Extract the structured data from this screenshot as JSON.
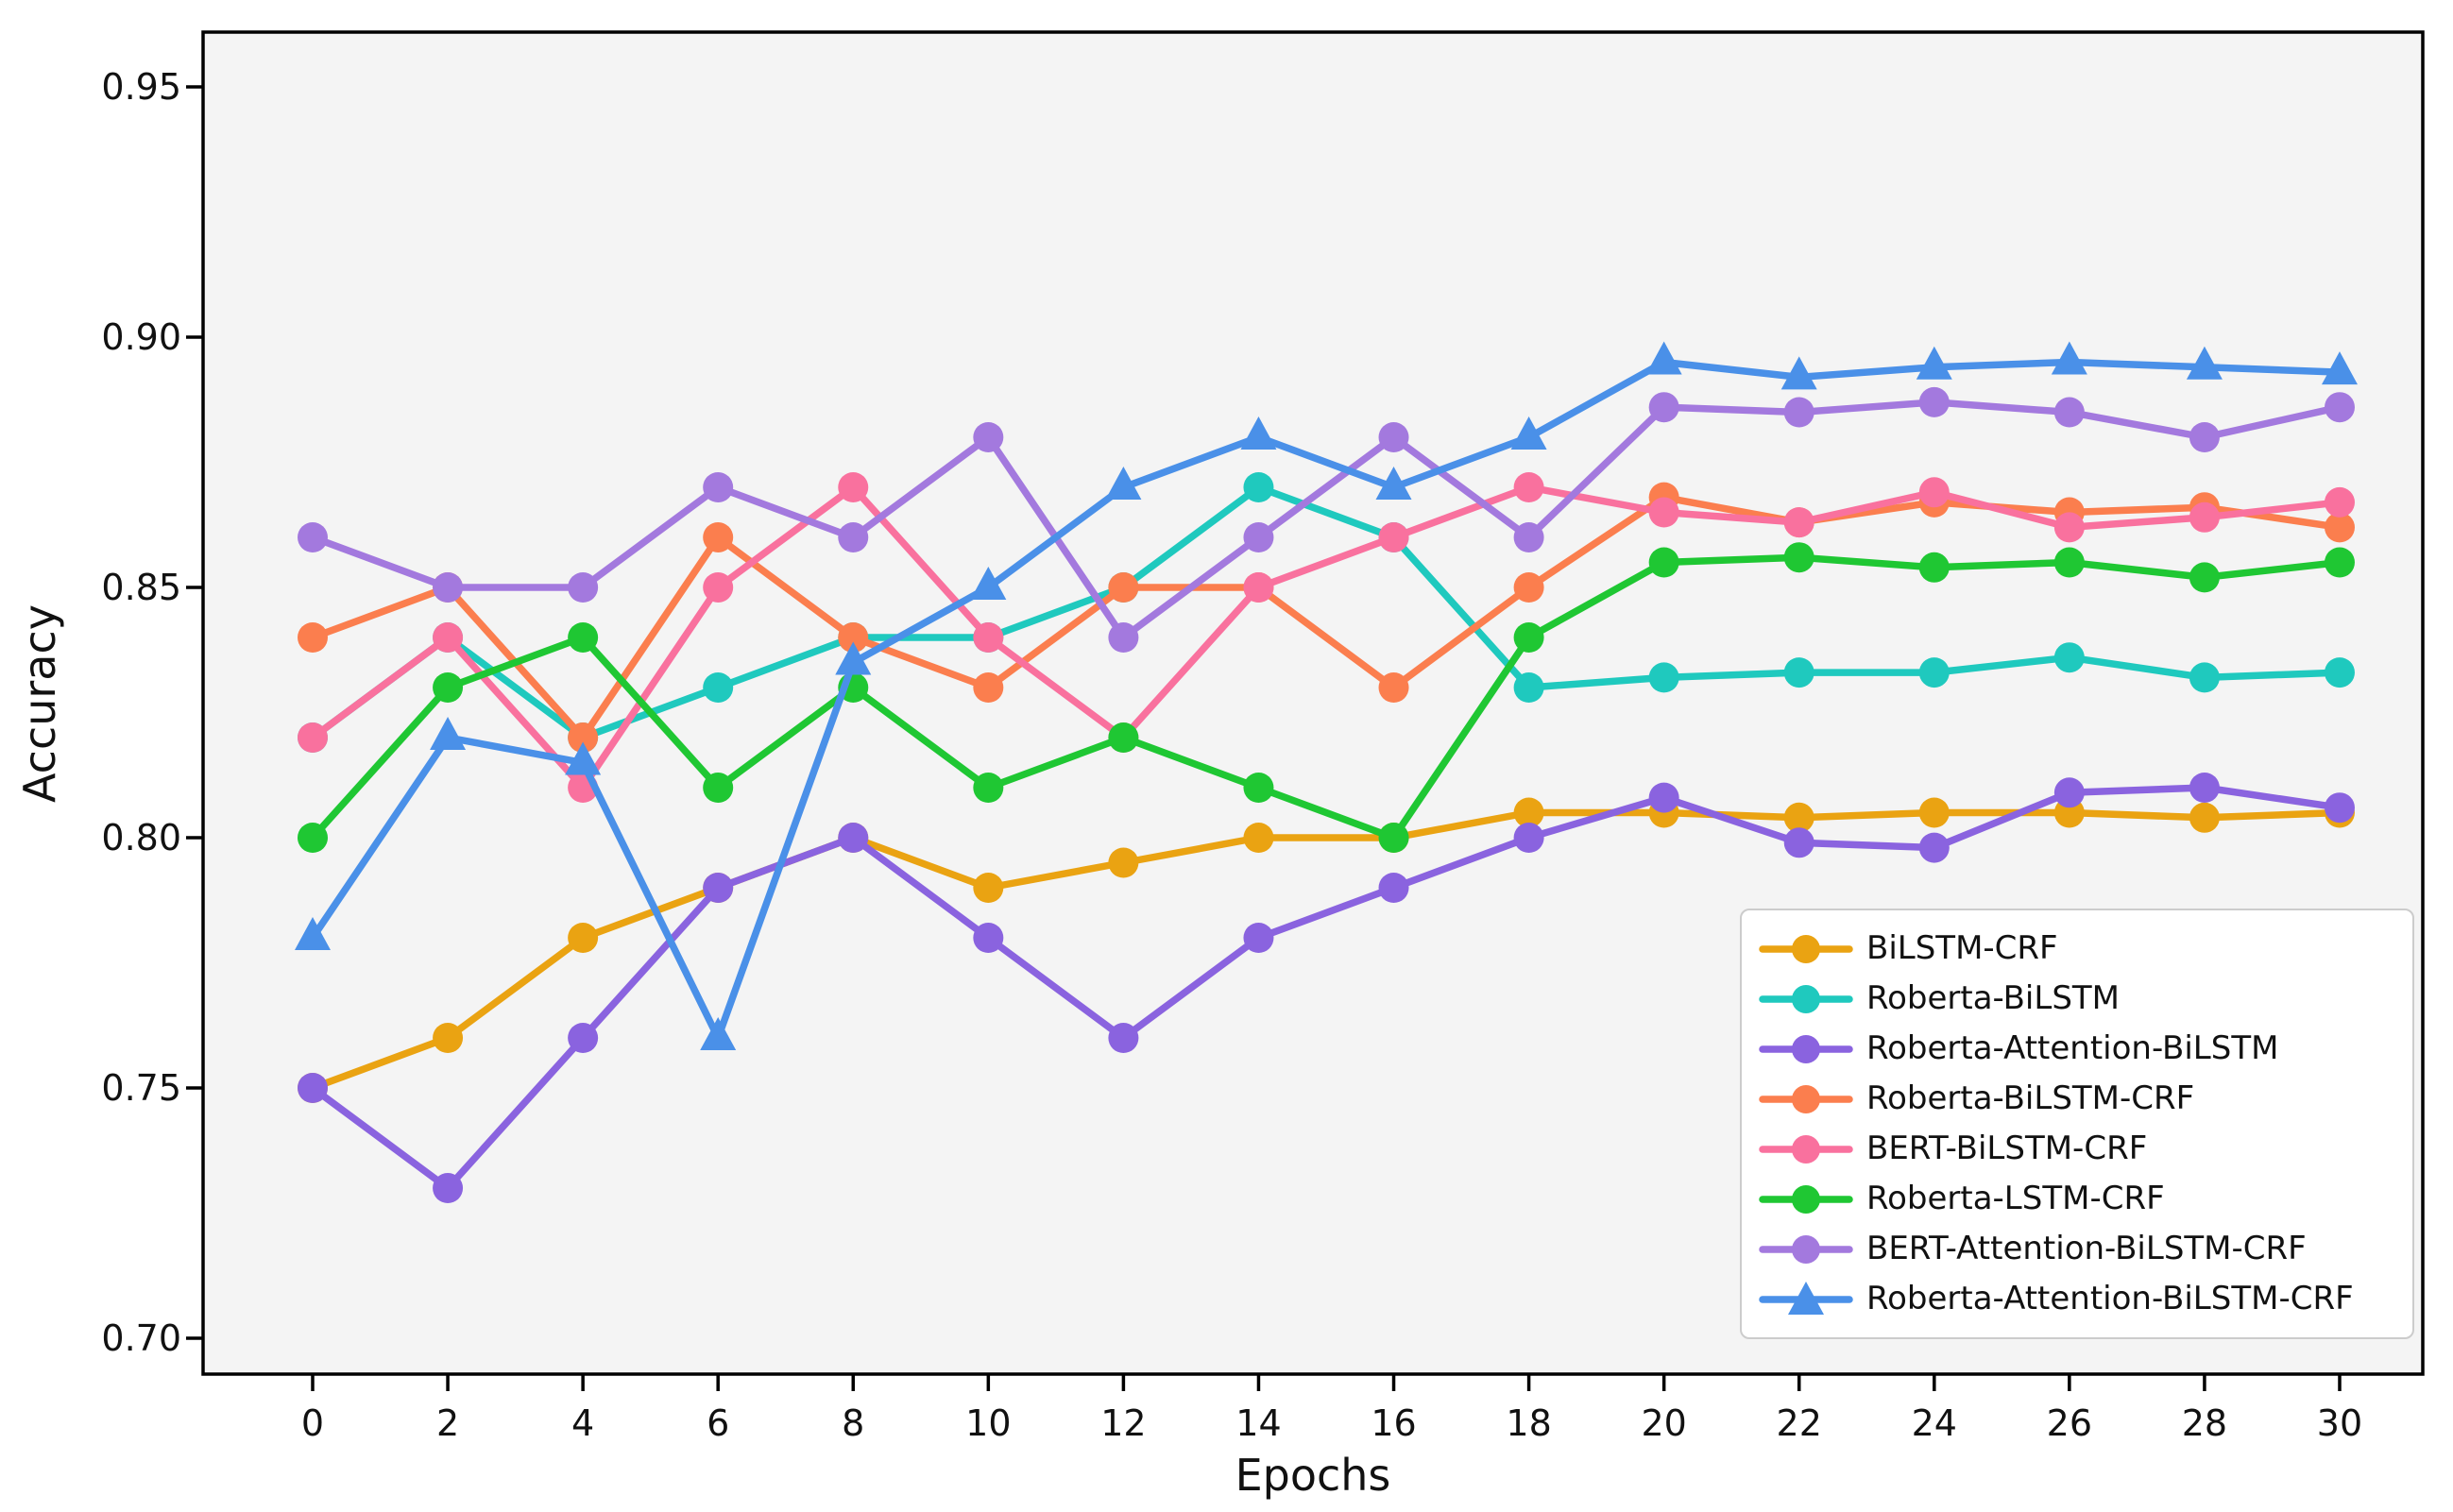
{
  "chart_data": {
    "type": "line",
    "title": "",
    "xlabel": "Epochs",
    "ylabel": "Accuracy",
    "x": [
      0,
      2,
      4,
      6,
      8,
      10,
      12,
      14,
      16,
      18,
      20,
      22,
      24,
      26,
      28,
      30
    ],
    "xtick_labels": [
      "0",
      "2",
      "4",
      "6",
      "8",
      "10",
      "12",
      "14",
      "16",
      "18",
      "20",
      "22",
      "24",
      "26",
      "28",
      "30"
    ],
    "ytick_labels": [
      "0.70",
      "0.75",
      "0.80",
      "0.85",
      "0.90",
      "0.95"
    ],
    "yticks": [
      0.7,
      0.75,
      0.8,
      0.85,
      0.9,
      0.95
    ],
    "ylim": [
      0.695,
      0.961
    ],
    "xlim": [
      -1.62,
      31.2
    ],
    "grid": false,
    "plot_background": "#f4f4f4",
    "figure_background": "#ffffff",
    "spine_color": "#000000",
    "legend_position": "lower right",
    "series": [
      {
        "name": "BiLSTM-CRF",
        "color": "#EAA312",
        "marker": "circle",
        "values": [
          0.75,
          0.76,
          0.78,
          0.79,
          0.8,
          0.79,
          0.795,
          0.8,
          0.8,
          0.805,
          0.805,
          0.804,
          0.805,
          0.805,
          0.804,
          0.805
        ]
      },
      {
        "name": "Roberta-BiLSTM",
        "color": "#1FC9BE",
        "marker": "circle",
        "values": [
          0.82,
          0.84,
          0.82,
          0.83,
          0.84,
          0.84,
          0.85,
          0.87,
          0.86,
          0.83,
          0.832,
          0.833,
          0.833,
          0.836,
          0.832,
          0.833
        ]
      },
      {
        "name": "Roberta-Attention-BiLSTM",
        "color": "#8A63DF",
        "marker": "circle",
        "values": [
          0.75,
          0.73,
          0.76,
          0.79,
          0.8,
          0.78,
          0.76,
          0.78,
          0.79,
          0.8,
          0.808,
          0.799,
          0.798,
          0.809,
          0.81,
          0.806
        ]
      },
      {
        "name": "Roberta-BiLSTM-CRF",
        "color": "#FB7E4E",
        "marker": "circle",
        "values": [
          0.84,
          0.85,
          0.82,
          0.86,
          0.84,
          0.83,
          0.85,
          0.85,
          0.83,
          0.85,
          0.868,
          0.863,
          0.867,
          0.865,
          0.866,
          0.862
        ]
      },
      {
        "name": "BERT-BiLSTM-CRF",
        "color": "#F9719E",
        "marker": "circle",
        "values": [
          0.82,
          0.84,
          0.81,
          0.85,
          0.87,
          0.84,
          0.82,
          0.85,
          0.86,
          0.87,
          0.865,
          0.863,
          0.869,
          0.862,
          0.864,
          0.867
        ]
      },
      {
        "name": "Roberta-LSTM-CRF",
        "color": "#1FC733",
        "marker": "circle",
        "values": [
          0.8,
          0.83,
          0.84,
          0.81,
          0.83,
          0.81,
          0.82,
          0.81,
          0.8,
          0.84,
          0.855,
          0.856,
          0.854,
          0.855,
          0.852,
          0.855
        ]
      },
      {
        "name": "BERT-Attention-BiLSTM-CRF",
        "color": "#A379DE",
        "marker": "circle",
        "values": [
          0.86,
          0.85,
          0.85,
          0.87,
          0.86,
          0.88,
          0.84,
          0.86,
          0.88,
          0.86,
          0.886,
          0.885,
          0.887,
          0.885,
          0.88,
          0.886
        ]
      },
      {
        "name": "Roberta-Attention-BiLSTM-CRF",
        "color": "#4A90E8",
        "marker": "triangle-up",
        "values": [
          0.78,
          0.82,
          0.815,
          0.76,
          0.835,
          0.85,
          0.87,
          0.88,
          0.87,
          0.88,
          0.895,
          0.892,
          0.894,
          0.895,
          0.894,
          0.893
        ]
      }
    ]
  }
}
